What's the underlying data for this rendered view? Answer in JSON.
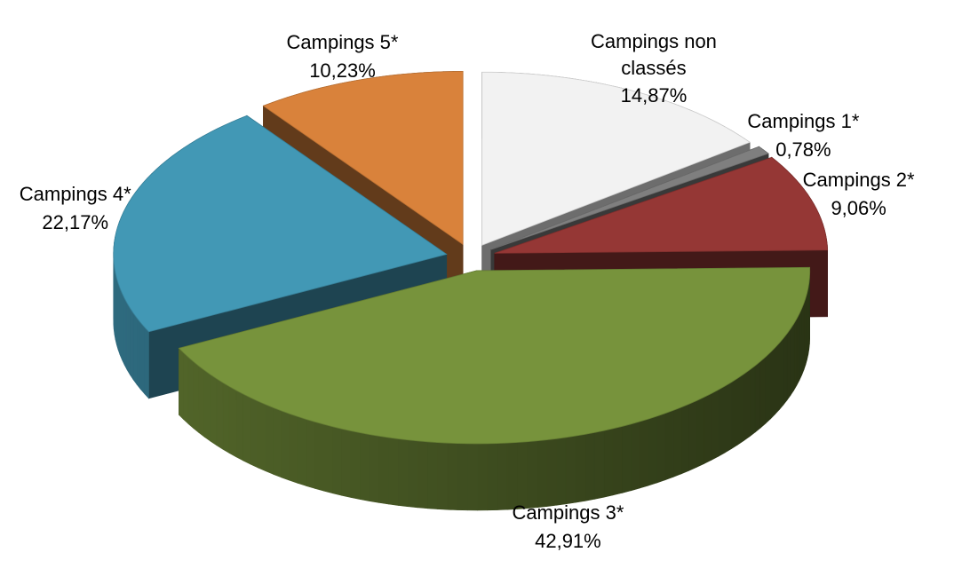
{
  "chart_data": {
    "type": "pie3d",
    "categories": [
      "Campings non classés",
      "Campings 1*",
      "Campings 2*",
      "Campings 3*",
      "Campings 4*",
      "Campings 5*"
    ],
    "values": [
      14.87,
      0.78,
      9.06,
      42.91,
      22.17,
      10.23
    ],
    "value_labels": [
      "14,87%",
      "0,78%",
      "9,06%",
      "42,91%",
      "22,17%",
      "10,23%"
    ],
    "colors": [
      "#f2f2f2",
      "#7f7f7f",
      "#953735",
      "#77933c",
      "#4298b5",
      "#d9823b"
    ]
  }
}
